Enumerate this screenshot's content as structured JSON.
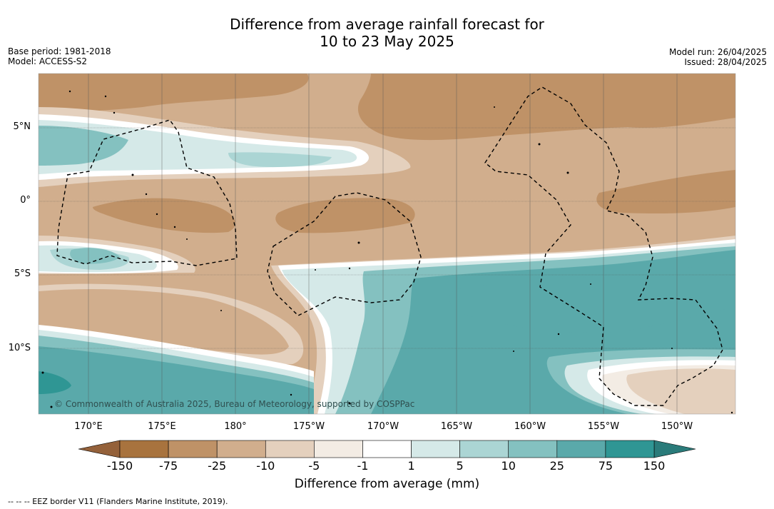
{
  "title_line1": "Difference from average rainfall forecast for",
  "title_line2": "10 to 23 May 2025",
  "meta_left": [
    "Base period: 1981-2018",
    "Model: ACCESS-S2"
  ],
  "meta_right": [
    "Model run: 26/04/2025",
    "Issued: 28/04/2025"
  ],
  "lat_labels": [
    "5°N",
    "0°",
    "5°S",
    "10°S"
  ],
  "lon_labels": [
    "170°E",
    "175°E",
    "180°",
    "175°W",
    "170°W",
    "165°W",
    "160°W",
    "155°W",
    "150°W"
  ],
  "copyright": "© Commonwealth of Australia 2025, Bureau of Meteorology, supported by COSPPac",
  "colorbar": {
    "ticks": [
      "-150",
      "-75",
      "-25",
      "-10",
      "-5",
      "-1",
      "1",
      "5",
      "10",
      "25",
      "75",
      "150"
    ],
    "colors": [
      "#a8733e",
      "#bf9267",
      "#d1ae8d",
      "#e4d0bd",
      "#f3ece4",
      "#ffffff",
      "#d5e9e8",
      "#abd5d4",
      "#84c1c0",
      "#5aa9aa",
      "#2f9694"
    ],
    "under_color": "#94613a",
    "over_color": "#2a7b7a",
    "title": "Difference from average (mm)"
  },
  "eez_legend": "--  --  -- EEZ border V11 (Flanders Marine Institute, 2019)."
}
